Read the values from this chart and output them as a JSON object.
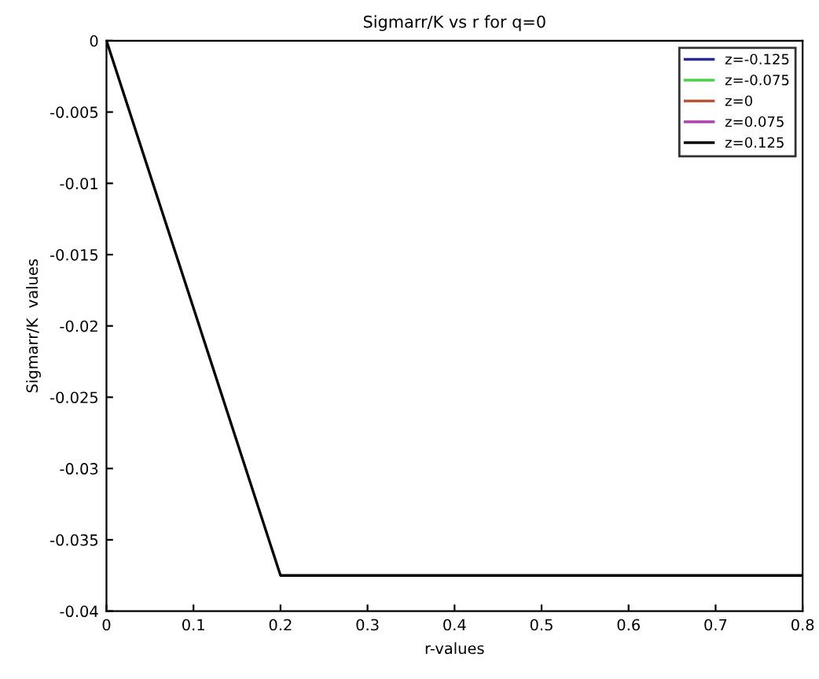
{
  "chart_data": {
    "type": "line",
    "title": "Sigmarr/K vs r for q=0",
    "xlabel": "r-values",
    "ylabel": "Sigmarr/K  values",
    "x": [
      0,
      0.2,
      0.8
    ],
    "series": [
      {
        "name": "z=-0.125",
        "color": "#2b2b8f",
        "values": [
          null,
          null,
          null
        ]
      },
      {
        "name": "z=-0.075",
        "color": "#4ccf4c",
        "values": [
          null,
          null,
          null
        ]
      },
      {
        "name": "z=0",
        "color": "#b5553a",
        "values": [
          null,
          null,
          null
        ]
      },
      {
        "name": "z=0.075",
        "color": "#b040b0",
        "values": [
          null,
          null,
          null
        ]
      },
      {
        "name": "z=0.125",
        "color": "#000000",
        "values": [
          0,
          -0.0375,
          -0.0375
        ]
      }
    ],
    "xlim": [
      0,
      0.8
    ],
    "xticks": [
      0,
      0.1,
      0.2,
      0.3,
      0.4,
      0.5,
      0.6,
      0.7,
      0.8
    ],
    "ylim": [
      -0.04,
      0
    ],
    "yticks": [
      0,
      -0.005,
      -0.01,
      -0.015,
      -0.02,
      -0.025,
      -0.03,
      -0.035,
      -0.04
    ],
    "legend": "top right",
    "grid": false
  }
}
